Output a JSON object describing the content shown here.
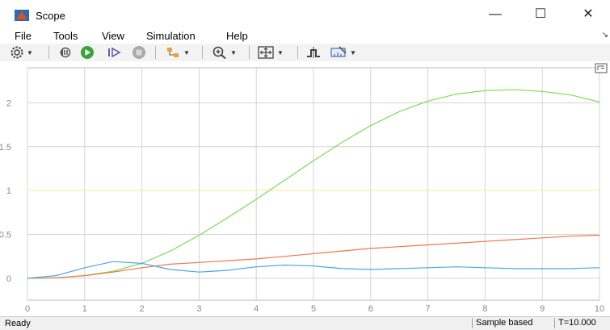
{
  "window": {
    "title": "Scope",
    "minimize_glyph": "—",
    "maximize_glyph": "☐",
    "close_glyph": "✕",
    "accent": "#d9531e"
  },
  "menu": {
    "items": [
      "File",
      "Tools",
      "View",
      "Simulation",
      "Help"
    ],
    "overflow_glyph": "↘"
  },
  "toolbar": {
    "icons": [
      "settings-icon",
      "step-back-icon",
      "run-icon",
      "step-forward-icon",
      "stop-icon",
      "highlight-icon",
      "zoom-in-icon",
      "fit-to-view-icon",
      "triggers-icon",
      "cursor-measurements-icon"
    ]
  },
  "status": {
    "left": "Ready",
    "mode": "Sample based",
    "time": "T=10.000"
  },
  "chart_data": {
    "type": "line",
    "title": "",
    "xlabel": "",
    "ylabel": "",
    "xlim": [
      0,
      10
    ],
    "ylim": [
      -0.25,
      2.4
    ],
    "xticks": [
      0,
      1,
      2,
      3,
      4,
      5,
      6,
      7,
      8,
      9,
      10
    ],
    "yticks": [
      0,
      0.5,
      1,
      1.5,
      2
    ],
    "ytick_labels": [
      "0",
      "0.5",
      "1",
      "1.5",
      "2"
    ],
    "grid": true,
    "background": "#ffffff",
    "grid_color": "#d4d4d4",
    "series": [
      {
        "color": "#fff59a",
        "x": [
          0,
          10
        ],
        "y": [
          1,
          1
        ]
      },
      {
        "color": "#7ed957",
        "x": [
          0,
          0.5,
          1,
          1.5,
          2,
          2.5,
          3,
          3.5,
          4,
          4.5,
          5,
          5.5,
          6,
          6.5,
          7,
          7.5,
          8,
          8.5,
          9,
          9.5,
          10
        ],
        "y": [
          0,
          0.005,
          0.03,
          0.08,
          0.17,
          0.31,
          0.49,
          0.69,
          0.9,
          1.12,
          1.34,
          1.55,
          1.74,
          1.9,
          2.02,
          2.1,
          2.14,
          2.15,
          2.13,
          2.09,
          2.01
        ]
      },
      {
        "color": "#f0774a",
        "x": [
          0,
          0.5,
          1,
          1.5,
          2,
          2.5,
          3,
          3.5,
          4,
          4.5,
          5,
          5.5,
          6,
          6.5,
          7,
          7.5,
          8,
          8.5,
          9,
          9.5,
          10
        ],
        "y": [
          0,
          0.005,
          0.03,
          0.07,
          0.12,
          0.16,
          0.18,
          0.2,
          0.22,
          0.25,
          0.28,
          0.31,
          0.34,
          0.36,
          0.38,
          0.4,
          0.42,
          0.44,
          0.46,
          0.48,
          0.49
        ]
      },
      {
        "color": "#4aa8e8",
        "x": [
          0,
          0.5,
          1,
          1.5,
          2,
          2.5,
          3,
          3.5,
          4,
          4.5,
          5,
          5.5,
          6,
          6.5,
          7,
          7.5,
          8,
          8.5,
          9,
          9.5,
          10
        ],
        "y": [
          0,
          0.03,
          0.12,
          0.19,
          0.17,
          0.1,
          0.07,
          0.09,
          0.13,
          0.15,
          0.14,
          0.11,
          0.1,
          0.11,
          0.12,
          0.13,
          0.12,
          0.11,
          0.11,
          0.11,
          0.12
        ]
      }
    ]
  }
}
